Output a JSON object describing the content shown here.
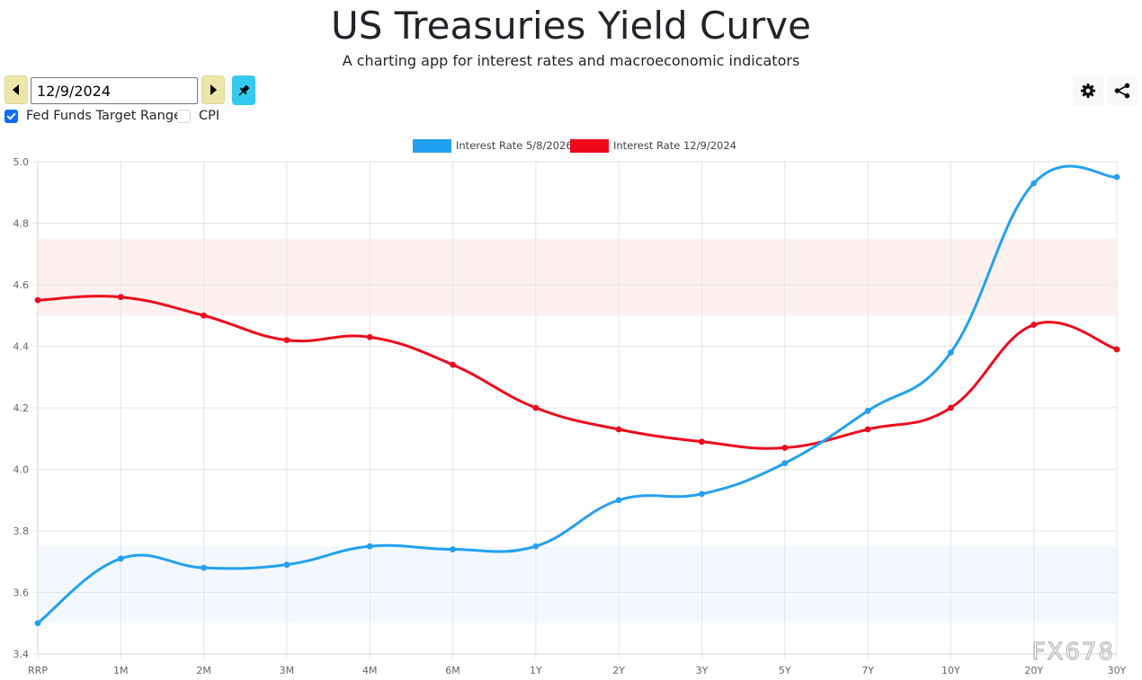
{
  "header": {
    "title": "US Treasuries Yield Curve",
    "subtitle": "A charting app for interest rates and macroeconomic indicators"
  },
  "controls": {
    "date_value": "12/9/2024",
    "prev_icon": "caret-left-icon",
    "next_icon": "caret-right-icon",
    "pin_icon": "pin-icon",
    "settings_icon": "gear-icon",
    "share_icon": "share-icon"
  },
  "options": [
    {
      "label": "Fed Funds Target Range",
      "checked": true
    },
    {
      "label": "CPI",
      "checked": false
    }
  ],
  "watermark": "FX678",
  "colors": {
    "series_blue": "#22a1f2",
    "series_red": "#ee0a1c",
    "band_red": "#fff0f0",
    "band_blue": "#f2f8fe",
    "checkbox_blue": "#0d6efd",
    "nav_button": "#ece6a8",
    "pin_button": "#34c9ef"
  },
  "chart_data": {
    "type": "line",
    "categories": [
      "RRP",
      "1M",
      "2M",
      "3M",
      "4M",
      "6M",
      "1Y",
      "2Y",
      "3Y",
      "5Y",
      "7Y",
      "10Y",
      "20Y",
      "30Y"
    ],
    "ylim": [
      3.4,
      5.0
    ],
    "yticks": [
      "3.4",
      "3.6",
      "3.8",
      "4.0",
      "4.2",
      "4.4",
      "4.6",
      "4.8",
      "5.0"
    ],
    "grid": true,
    "legend_position": "top-center",
    "series": [
      {
        "name": "Interest Rate 5/8/2026",
        "color": "#22a1f2",
        "values": [
          3.5,
          3.71,
          3.68,
          3.69,
          3.75,
          3.74,
          3.75,
          3.9,
          3.92,
          4.02,
          4.19,
          4.38,
          4.93,
          4.95
        ]
      },
      {
        "name": "Interest Rate 12/9/2024",
        "color": "#ee0a1c",
        "values": [
          4.55,
          4.56,
          4.5,
          4.42,
          4.43,
          4.34,
          4.2,
          4.13,
          4.09,
          4.07,
          4.13,
          4.2,
          4.47,
          4.39
        ]
      }
    ],
    "bands": [
      {
        "from": 4.5,
        "to": 4.75,
        "color": "#fff0f0"
      },
      {
        "from": 3.5,
        "to": 3.75,
        "color": "#f2f8fe"
      }
    ]
  }
}
